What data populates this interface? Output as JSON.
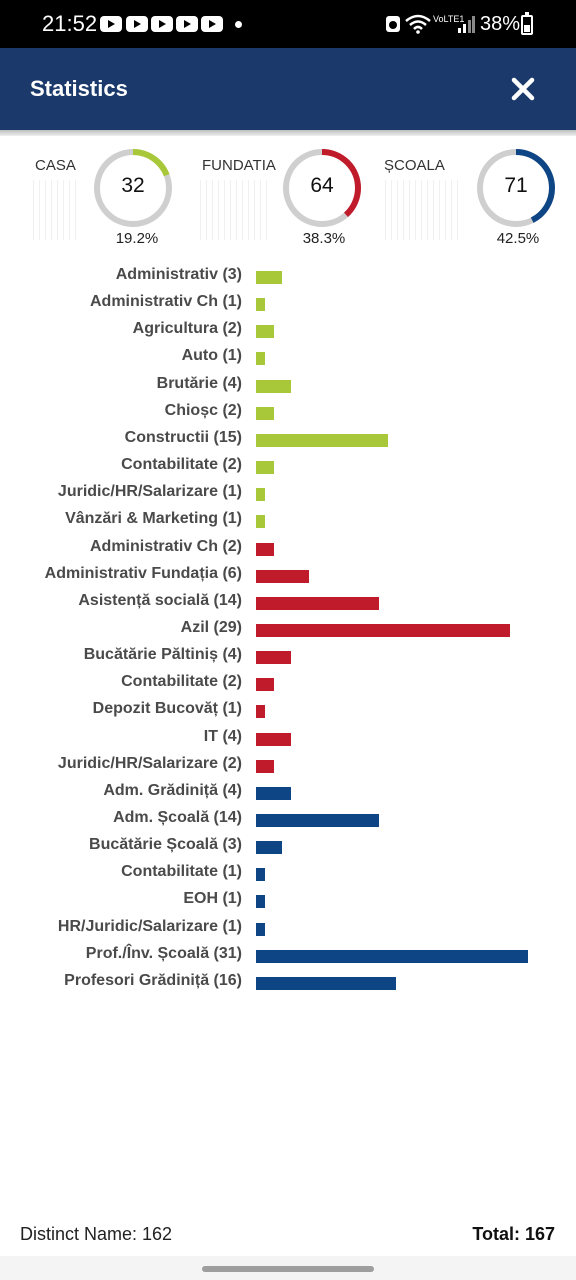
{
  "status_bar": {
    "time": "21:52",
    "battery": "38%",
    "network": "VoLTE1",
    "icons": [
      "youtube-icon",
      "youtube-icon",
      "youtube-icon",
      "youtube-icon",
      "youtube-icon",
      "dot-icon",
      "alarm-icon",
      "wifi-icon",
      "signal-icon",
      "battery-icon"
    ]
  },
  "header": {
    "title": "Statistics",
    "close_icon": "close-icon",
    "background": "#1b3a6b"
  },
  "summary": [
    {
      "label": "CASA",
      "count": "32",
      "percent": "19.2%",
      "fraction": 0.192,
      "color": "#a8c83a"
    },
    {
      "label": "FUNDATIA",
      "count": "64",
      "percent": "38.3%",
      "fraction": 0.383,
      "color": "#c01b2a"
    },
    {
      "label": "ȘCOALA",
      "count": "71",
      "percent": "42.5%",
      "fraction": 0.425,
      "color": "#0e4585"
    }
  ],
  "chart_data": {
    "type": "bar",
    "orientation": "horizontal",
    "categories": [
      "Administrativ (3)",
      "Administrativ Ch (1)",
      "Agricultura (2)",
      "Auto (1)",
      "Brutărie (4)",
      "Chioșc (2)",
      "Constructii (15)",
      "Contabilitate (2)",
      "Juridic/HR/Salarizare (1)",
      "Vânzări & Marketing (1)",
      "Administrativ Ch (2)",
      "Administrativ Fundația (6)",
      "Asistență socială (14)",
      "Azil (29)",
      "Bucătărie Păltiniș (4)",
      "Contabilitate  (2)",
      "Depozit Bucovăț (1)",
      "IT (4)",
      "Juridic/HR/Salarizare (2)",
      "Adm. Grădiniță (4)",
      "Adm. Școală (14)",
      "Bucătărie Școală (3)",
      "Contabilitate (1)",
      "EOH (1)",
      "HR/Juridic/Salarizare (1)",
      "Prof./Înv. Școală (31)",
      "Profesori Grădiniță (16)"
    ],
    "values": [
      3,
      1,
      2,
      1,
      4,
      2,
      15,
      2,
      1,
      1,
      2,
      6,
      14,
      29,
      4,
      2,
      1,
      4,
      2,
      4,
      14,
      3,
      1,
      1,
      1,
      31,
      16
    ],
    "groups": [
      "CASA",
      "CASA",
      "CASA",
      "CASA",
      "CASA",
      "CASA",
      "CASA",
      "CASA",
      "CASA",
      "CASA",
      "FUNDATIA",
      "FUNDATIA",
      "FUNDATIA",
      "FUNDATIA",
      "FUNDATIA",
      "FUNDATIA",
      "FUNDATIA",
      "FUNDATIA",
      "FUNDATIA",
      "ȘCOALA",
      "ȘCOALA",
      "ȘCOALA",
      "ȘCOALA",
      "ȘCOALA",
      "ȘCOALA",
      "ȘCOALA",
      "ȘCOALA"
    ],
    "group_colors": {
      "CASA": "#a8c83a",
      "FUNDATIA": "#c01b2a",
      "ȘCOALA": "#0e4585"
    },
    "xlim": [
      0,
      31
    ],
    "grid": false
  },
  "footer": {
    "distinct": "Distinct Name: 162",
    "total": "Total: 167"
  }
}
